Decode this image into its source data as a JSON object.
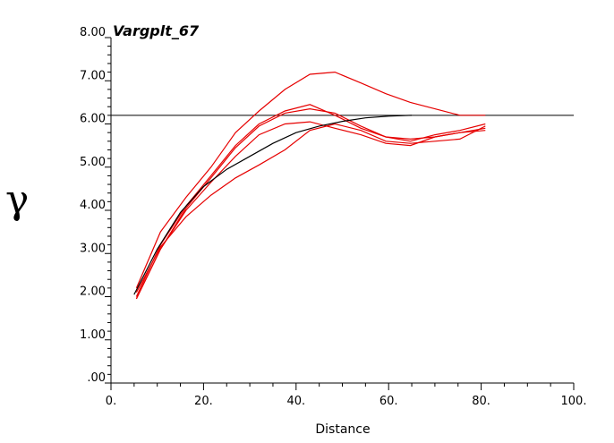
{
  "chart_data": {
    "type": "line",
    "title": "Vargplt_67",
    "xlabel": "Distance",
    "ylabel": "γ",
    "xlim": [
      0,
      100
    ],
    "ylim": [
      0,
      8
    ],
    "x_ticks": [
      "0.",
      "20.",
      "40.",
      "60.",
      "80.",
      "100."
    ],
    "y_ticks": [
      ".00",
      "1.00",
      "2.00",
      "3.00",
      "4.00",
      "5.00",
      "6.00",
      "7.00",
      "8.00"
    ],
    "grid": false,
    "colors": {
      "experimental": "#e60000",
      "model": "#000000",
      "sill": "#000000"
    },
    "sill": 6.2,
    "model": {
      "x": [
        5,
        10,
        15,
        20,
        25,
        30,
        35,
        40,
        45,
        50,
        55,
        60,
        65
      ],
      "y": [
        2.05,
        3.1,
        3.95,
        4.55,
        4.95,
        5.25,
        5.55,
        5.8,
        5.95,
        6.06,
        6.14,
        6.18,
        6.2
      ]
    },
    "series": [
      {
        "x": [
          5.5,
          10.7,
          16.2,
          21.6,
          26.9,
          32.0,
          37.6,
          43.0,
          48.4,
          54.0,
          59.4,
          64.7,
          70.0,
          75.4,
          80.9
        ],
        "y": [
          2.2,
          3.5,
          4.3,
          5.0,
          5.8,
          6.3,
          6.8,
          7.15,
          7.2,
          6.95,
          6.7,
          6.5,
          6.35,
          6.2,
          6.2
        ]
      },
      {
        "x": [
          5.5,
          10.7,
          16.2,
          21.6,
          26.9,
          32.0,
          37.6,
          43.0,
          48.4,
          54.0,
          59.4,
          64.7,
          70.0,
          75.4,
          80.9
        ],
        "y": [
          2.0,
          3.2,
          4.1,
          4.8,
          5.5,
          6.0,
          6.3,
          6.45,
          6.2,
          5.9,
          5.7,
          5.6,
          5.75,
          5.85,
          6.0
        ]
      },
      {
        "x": [
          5.5,
          10.7,
          16.2,
          21.6,
          26.9,
          32.0,
          37.6,
          43.0,
          48.4,
          54.0,
          59.4,
          64.7,
          70.0,
          75.4,
          80.9
        ],
        "y": [
          1.95,
          3.1,
          4.05,
          4.75,
          5.45,
          5.95,
          6.25,
          6.35,
          6.25,
          5.95,
          5.7,
          5.65,
          5.7,
          5.8,
          5.9
        ]
      },
      {
        "x": [
          5.5,
          10.7,
          16.2,
          21.6,
          26.9,
          32.0,
          37.6,
          43.0,
          48.4,
          54.0,
          59.4,
          64.7,
          70.0,
          75.4,
          80.9
        ],
        "y": [
          2.1,
          3.15,
          3.85,
          4.35,
          4.75,
          5.05,
          5.4,
          5.85,
          6.0,
          5.85,
          5.6,
          5.55,
          5.6,
          5.65,
          5.95
        ]
      },
      {
        "x": [
          5.5,
          10.7,
          16.2,
          21.6,
          26.9,
          32.0,
          37.6,
          43.0,
          48.4,
          54.0,
          59.4,
          64.7,
          70.0,
          75.4,
          80.9
        ],
        "y": [
          1.95,
          3.1,
          4.0,
          4.65,
          5.25,
          5.75,
          6.0,
          6.05,
          5.9,
          5.75,
          5.55,
          5.5,
          5.7,
          5.8,
          5.85
        ]
      }
    ]
  }
}
